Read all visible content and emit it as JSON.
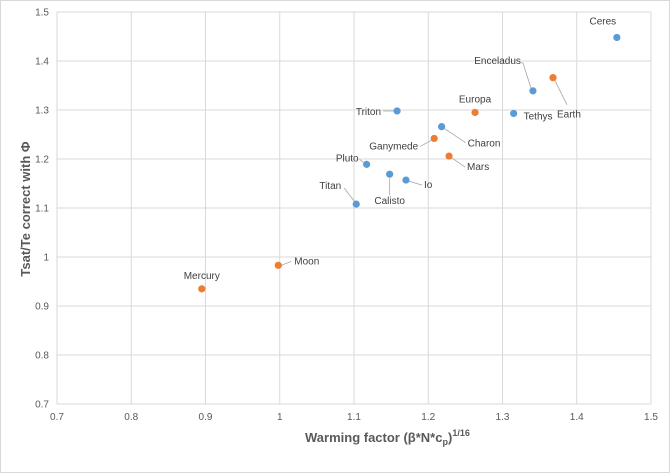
{
  "chart_data": {
    "type": "scatter",
    "title": "",
    "xlabel": "Warming factor  (β*N*c",
    "xlabel_sub": "p",
    "xlabel_close": ")",
    "xlabel_sup": "1/16",
    "ylabel": "Tsat/Te correct with Φ",
    "xlim": [
      0.7,
      1.5
    ],
    "ylim": [
      0.7,
      1.5
    ],
    "xticks": [
      "0.7",
      "0.8",
      "0.9",
      "1",
      "1.1",
      "1.2",
      "1.3",
      "1.4",
      "1.5"
    ],
    "yticks": [
      "0.7",
      "0.8",
      "0.9",
      "1",
      "1.1",
      "1.2",
      "1.3",
      "1.4",
      "1.5"
    ],
    "grid": true,
    "legend": "none",
    "colors": {
      "blue": "#5b9bd5",
      "orange": "#ed7d31"
    },
    "points": [
      {
        "name": "Mercury",
        "x": 0.895,
        "y": 0.935,
        "color": "orange",
        "label_pos": "above"
      },
      {
        "name": "Moon",
        "x": 0.998,
        "y": 0.983,
        "color": "orange",
        "label_pos": "right"
      },
      {
        "name": "Titan",
        "x": 1.103,
        "y": 1.108,
        "color": "blue",
        "label_pos": "left"
      },
      {
        "name": "Pluto",
        "x": 1.117,
        "y": 1.189,
        "color": "blue",
        "label_pos": "left"
      },
      {
        "name": "Calisto",
        "x": 1.148,
        "y": 1.169,
        "color": "blue",
        "label_pos": "below"
      },
      {
        "name": "Io",
        "x": 1.17,
        "y": 1.157,
        "color": "blue",
        "label_pos": "right"
      },
      {
        "name": "Triton",
        "x": 1.158,
        "y": 1.298,
        "color": "blue",
        "label_pos": "left"
      },
      {
        "name": "Ganymede",
        "x": 1.208,
        "y": 1.242,
        "color": "orange",
        "label_pos": "left"
      },
      {
        "name": "Charon",
        "x": 1.218,
        "y": 1.266,
        "color": "blue",
        "label_pos": "right"
      },
      {
        "name": "Mars",
        "x": 1.228,
        "y": 1.206,
        "color": "orange",
        "label_pos": "right"
      },
      {
        "name": "Europa",
        "x": 1.263,
        "y": 1.295,
        "color": "orange",
        "label_pos": "above"
      },
      {
        "name": "Tethys",
        "x": 1.315,
        "y": 1.293,
        "color": "blue",
        "label_pos": "right"
      },
      {
        "name": "Enceladus",
        "x": 1.341,
        "y": 1.339,
        "color": "blue",
        "label_pos": "above-left"
      },
      {
        "name": "Earth",
        "x": 1.368,
        "y": 1.366,
        "color": "orange",
        "label_pos": "below-right"
      },
      {
        "name": "Ceres",
        "x": 1.454,
        "y": 1.448,
        "color": "blue",
        "label_pos": "above"
      }
    ]
  }
}
